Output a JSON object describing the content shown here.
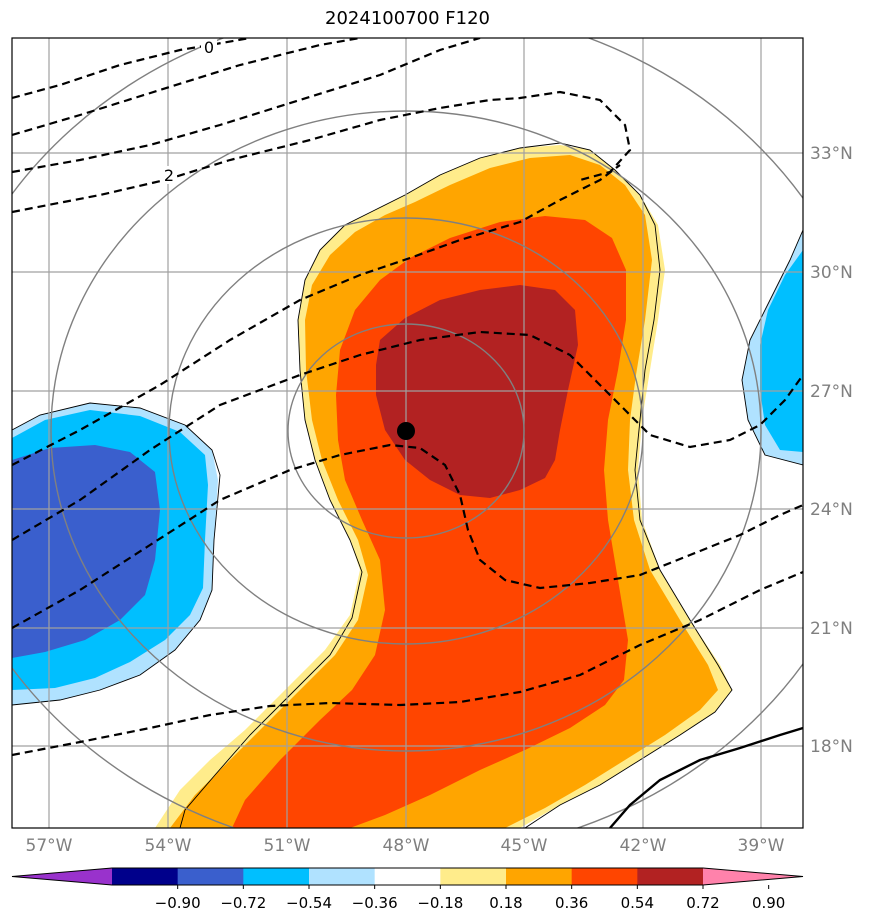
{
  "title": "2024100700 F120",
  "latitude_labels": [
    "33°N",
    "30°N",
    "27°N",
    "24°N",
    "21°N",
    "18°N"
  ],
  "longitude_labels": [
    "57°W",
    "54°W",
    "51°W",
    "48°W",
    "45°W",
    "42°W",
    "39°W"
  ],
  "contour_labels": [
    "0",
    "2"
  ],
  "colorbar": {
    "ticks": [
      "−0.90",
      "−0.72",
      "−0.54",
      "−0.36",
      "−0.18",
      "0.18",
      "0.36",
      "0.54",
      "0.72",
      "0.90"
    ],
    "colors": [
      "#9932cc",
      "#00008b",
      "#3a5fcd",
      "#00bfff",
      "#b0e2ff",
      "#ffffff",
      "#ffec8b",
      "#ffa500",
      "#ff4500",
      "#b22222",
      "#ff82ab"
    ]
  },
  "fill_colors": {
    "neg_light": "#b0e2ff",
    "neg_mid": "#00bfff",
    "neg_dark": "#3a5fcd",
    "pos_light": "#ffec8b",
    "pos_mid": "#ffa500",
    "pos_strong": "#ff4500",
    "pos_max": "#b22222"
  },
  "storm_center": {
    "lon_label": "48°W",
    "lat_label": "26°N"
  }
}
